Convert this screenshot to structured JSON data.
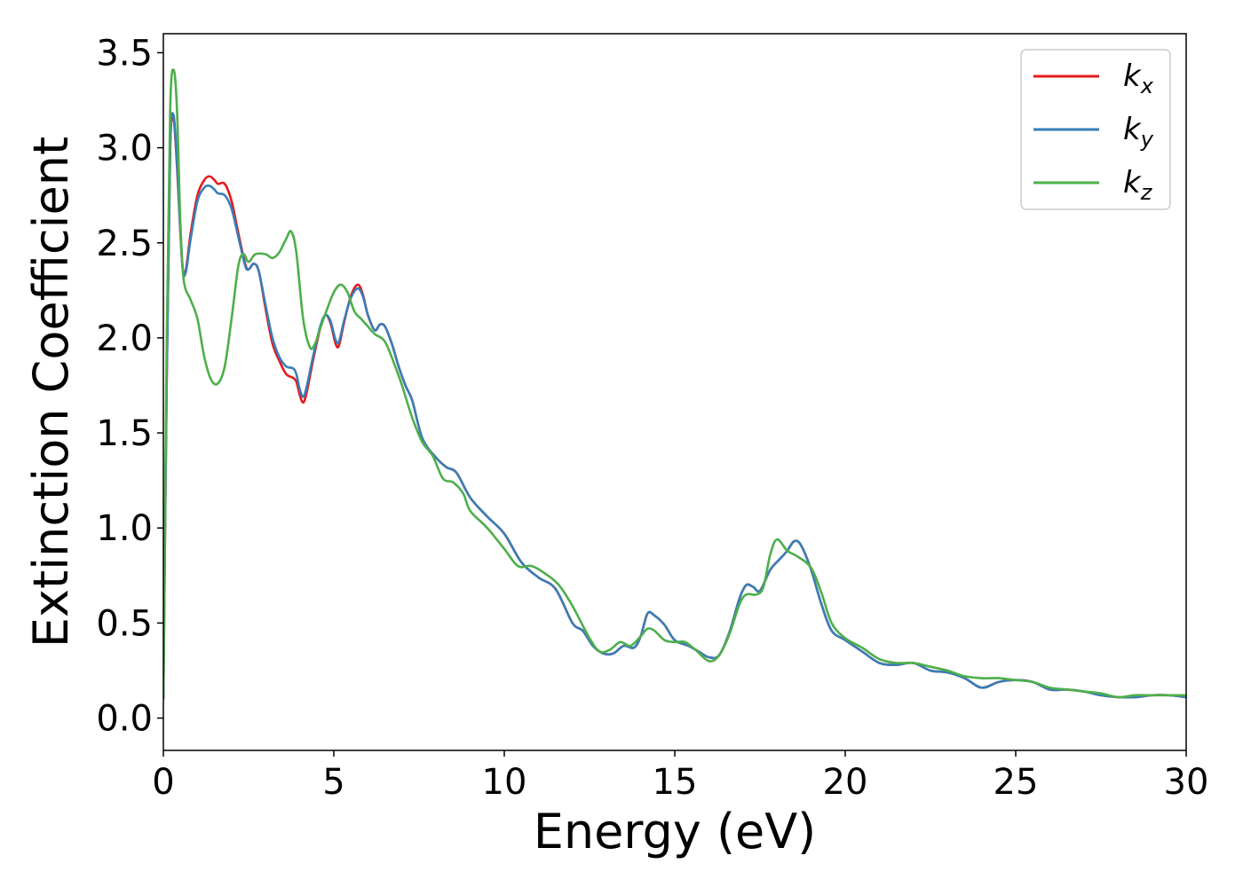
{
  "chart_data": {
    "type": "line",
    "title": "",
    "xlabel": "Energy (eV)",
    "ylabel": "Extinction Coefficient",
    "xlim": [
      0,
      30
    ],
    "ylim": [
      -0.17,
      3.6
    ],
    "xticks": [
      0,
      5,
      10,
      15,
      20,
      25,
      30
    ],
    "xtick_labels": [
      "0",
      "5",
      "10",
      "15",
      "20",
      "25",
      "30"
    ],
    "yticks": [
      0.0,
      0.5,
      1.0,
      1.5,
      2.0,
      2.5,
      3.0,
      3.5
    ],
    "ytick_labels": [
      "0.0",
      "0.5",
      "1.0",
      "1.5",
      "2.0",
      "2.5",
      "3.0",
      "3.5"
    ],
    "grid": false,
    "legend_position": "top-right",
    "series": [
      {
        "name": "k",
        "subscript": "x",
        "color": "#e41a1c",
        "points": [
          [
            0,
            0.1
          ],
          [
            0.1,
            1.8
          ],
          [
            0.2,
            3.0
          ],
          [
            0.3,
            3.15
          ],
          [
            0.4,
            2.9
          ],
          [
            0.55,
            2.4
          ],
          [
            0.65,
            2.35
          ],
          [
            0.8,
            2.55
          ],
          [
            1.0,
            2.75
          ],
          [
            1.2,
            2.83
          ],
          [
            1.35,
            2.85
          ],
          [
            1.5,
            2.83
          ],
          [
            1.6,
            2.81
          ],
          [
            1.8,
            2.81
          ],
          [
            2.0,
            2.72
          ],
          [
            2.2,
            2.55
          ],
          [
            2.4,
            2.39
          ],
          [
            2.5,
            2.36
          ],
          [
            2.65,
            2.39
          ],
          [
            2.8,
            2.35
          ],
          [
            3.0,
            2.15
          ],
          [
            3.2,
            1.97
          ],
          [
            3.4,
            1.88
          ],
          [
            3.6,
            1.81
          ],
          [
            3.8,
            1.79
          ],
          [
            3.9,
            1.77
          ],
          [
            4.0,
            1.7
          ],
          [
            4.1,
            1.66
          ],
          [
            4.2,
            1.71
          ],
          [
            4.4,
            1.89
          ],
          [
            4.6,
            2.05
          ],
          [
            4.75,
            2.12
          ],
          [
            4.9,
            2.08
          ],
          [
            5.05,
            1.97
          ],
          [
            5.15,
            1.96
          ],
          [
            5.3,
            2.08
          ],
          [
            5.5,
            2.22
          ],
          [
            5.7,
            2.28
          ],
          [
            5.85,
            2.23
          ],
          [
            6.0,
            2.12
          ],
          [
            6.2,
            2.04
          ],
          [
            6.35,
            2.07
          ],
          [
            6.5,
            2.06
          ],
          [
            6.7,
            1.97
          ],
          [
            6.9,
            1.85
          ],
          [
            7.1,
            1.75
          ],
          [
            7.3,
            1.67
          ],
          [
            7.6,
            1.47
          ],
          [
            8.0,
            1.37
          ],
          [
            8.3,
            1.32
          ],
          [
            8.6,
            1.29
          ],
          [
            9.0,
            1.16
          ],
          [
            9.5,
            1.06
          ],
          [
            10.0,
            0.97
          ],
          [
            10.5,
            0.82
          ],
          [
            11.0,
            0.74
          ],
          [
            11.5,
            0.68
          ],
          [
            12.0,
            0.5
          ],
          [
            12.3,
            0.46
          ],
          [
            12.6,
            0.38
          ],
          [
            12.9,
            0.34
          ],
          [
            13.2,
            0.34
          ],
          [
            13.5,
            0.38
          ],
          [
            13.8,
            0.37
          ],
          [
            14.0,
            0.43
          ],
          [
            14.2,
            0.55
          ],
          [
            14.4,
            0.54
          ],
          [
            14.7,
            0.49
          ],
          [
            15.0,
            0.41
          ],
          [
            15.4,
            0.38
          ],
          [
            15.7,
            0.35
          ],
          [
            16.0,
            0.32
          ],
          [
            16.3,
            0.33
          ],
          [
            16.6,
            0.45
          ],
          [
            16.9,
            0.63
          ],
          [
            17.1,
            0.7
          ],
          [
            17.3,
            0.69
          ],
          [
            17.5,
            0.67
          ],
          [
            17.8,
            0.78
          ],
          [
            18.1,
            0.84
          ],
          [
            18.3,
            0.88
          ],
          [
            18.5,
            0.93
          ],
          [
            18.7,
            0.91
          ],
          [
            19.0,
            0.78
          ],
          [
            19.3,
            0.6
          ],
          [
            19.6,
            0.46
          ],
          [
            20.0,
            0.41
          ],
          [
            20.5,
            0.35
          ],
          [
            21.0,
            0.29
          ],
          [
            21.5,
            0.28
          ],
          [
            22.0,
            0.29
          ],
          [
            22.5,
            0.25
          ],
          [
            23.0,
            0.24
          ],
          [
            23.5,
            0.21
          ],
          [
            24.0,
            0.16
          ],
          [
            24.5,
            0.19
          ],
          [
            25.0,
            0.2
          ],
          [
            25.5,
            0.19
          ],
          [
            26.0,
            0.15
          ],
          [
            26.5,
            0.15
          ],
          [
            27.0,
            0.14
          ],
          [
            27.5,
            0.12
          ],
          [
            28.0,
            0.11
          ],
          [
            28.5,
            0.11
          ],
          [
            29.0,
            0.12
          ],
          [
            29.5,
            0.12
          ],
          [
            30.0,
            0.11
          ]
        ]
      },
      {
        "name": "k",
        "subscript": "y",
        "color": "#377eb8",
        "points": [
          [
            0,
            0.1
          ],
          [
            0.1,
            1.8
          ],
          [
            0.2,
            3.0
          ],
          [
            0.3,
            3.17
          ],
          [
            0.4,
            2.92
          ],
          [
            0.55,
            2.4
          ],
          [
            0.65,
            2.34
          ],
          [
            0.8,
            2.52
          ],
          [
            1.0,
            2.72
          ],
          [
            1.2,
            2.79
          ],
          [
            1.35,
            2.8
          ],
          [
            1.5,
            2.78
          ],
          [
            1.6,
            2.76
          ],
          [
            1.8,
            2.75
          ],
          [
            2.0,
            2.68
          ],
          [
            2.2,
            2.53
          ],
          [
            2.4,
            2.38
          ],
          [
            2.5,
            2.36
          ],
          [
            2.65,
            2.39
          ],
          [
            2.8,
            2.35
          ],
          [
            3.0,
            2.17
          ],
          [
            3.2,
            2.0
          ],
          [
            3.4,
            1.9
          ],
          [
            3.6,
            1.85
          ],
          [
            3.8,
            1.84
          ],
          [
            3.9,
            1.81
          ],
          [
            4.0,
            1.73
          ],
          [
            4.1,
            1.69
          ],
          [
            4.2,
            1.74
          ],
          [
            4.4,
            1.91
          ],
          [
            4.6,
            2.06
          ],
          [
            4.75,
            2.12
          ],
          [
            4.9,
            2.09
          ],
          [
            5.05,
            1.99
          ],
          [
            5.15,
            1.98
          ],
          [
            5.3,
            2.09
          ],
          [
            5.5,
            2.21
          ],
          [
            5.7,
            2.26
          ],
          [
            5.85,
            2.22
          ],
          [
            6.0,
            2.12
          ],
          [
            6.2,
            2.04
          ],
          [
            6.35,
            2.07
          ],
          [
            6.5,
            2.06
          ],
          [
            6.7,
            1.97
          ],
          [
            6.9,
            1.85
          ],
          [
            7.1,
            1.75
          ],
          [
            7.3,
            1.67
          ],
          [
            7.6,
            1.47
          ],
          [
            8.0,
            1.37
          ],
          [
            8.3,
            1.32
          ],
          [
            8.6,
            1.29
          ],
          [
            9.0,
            1.16
          ],
          [
            9.5,
            1.06
          ],
          [
            10.0,
            0.97
          ],
          [
            10.5,
            0.82
          ],
          [
            11.0,
            0.74
          ],
          [
            11.5,
            0.68
          ],
          [
            12.0,
            0.5
          ],
          [
            12.3,
            0.46
          ],
          [
            12.6,
            0.38
          ],
          [
            12.9,
            0.34
          ],
          [
            13.2,
            0.34
          ],
          [
            13.5,
            0.38
          ],
          [
            13.8,
            0.37
          ],
          [
            14.0,
            0.43
          ],
          [
            14.2,
            0.55
          ],
          [
            14.4,
            0.54
          ],
          [
            14.7,
            0.49
          ],
          [
            15.0,
            0.41
          ],
          [
            15.4,
            0.38
          ],
          [
            15.7,
            0.35
          ],
          [
            16.0,
            0.32
          ],
          [
            16.3,
            0.33
          ],
          [
            16.6,
            0.45
          ],
          [
            16.9,
            0.63
          ],
          [
            17.1,
            0.7
          ],
          [
            17.3,
            0.69
          ],
          [
            17.5,
            0.67
          ],
          [
            17.8,
            0.78
          ],
          [
            18.1,
            0.84
          ],
          [
            18.3,
            0.88
          ],
          [
            18.5,
            0.93
          ],
          [
            18.7,
            0.91
          ],
          [
            19.0,
            0.78
          ],
          [
            19.3,
            0.6
          ],
          [
            19.6,
            0.46
          ],
          [
            20.0,
            0.41
          ],
          [
            20.5,
            0.35
          ],
          [
            21.0,
            0.29
          ],
          [
            21.5,
            0.28
          ],
          [
            22.0,
            0.29
          ],
          [
            22.5,
            0.25
          ],
          [
            23.0,
            0.24
          ],
          [
            23.5,
            0.21
          ],
          [
            24.0,
            0.16
          ],
          [
            24.5,
            0.19
          ],
          [
            25.0,
            0.2
          ],
          [
            25.5,
            0.19
          ],
          [
            26.0,
            0.15
          ],
          [
            26.5,
            0.15
          ],
          [
            27.0,
            0.14
          ],
          [
            27.5,
            0.12
          ],
          [
            28.0,
            0.11
          ],
          [
            28.5,
            0.11
          ],
          [
            29.0,
            0.12
          ],
          [
            29.5,
            0.12
          ],
          [
            30.0,
            0.11
          ]
        ]
      },
      {
        "name": "k",
        "subscript": "z",
        "color": "#4daf4a",
        "points": [
          [
            0,
            0.1
          ],
          [
            0.1,
            2.0
          ],
          [
            0.2,
            3.2
          ],
          [
            0.3,
            3.41
          ],
          [
            0.4,
            3.2
          ],
          [
            0.5,
            2.6
          ],
          [
            0.6,
            2.3
          ],
          [
            0.8,
            2.2
          ],
          [
            1.0,
            2.1
          ],
          [
            1.2,
            1.9
          ],
          [
            1.4,
            1.78
          ],
          [
            1.6,
            1.76
          ],
          [
            1.8,
            1.85
          ],
          [
            2.0,
            2.1
          ],
          [
            2.2,
            2.38
          ],
          [
            2.35,
            2.44
          ],
          [
            2.5,
            2.4
          ],
          [
            2.7,
            2.44
          ],
          [
            3.0,
            2.44
          ],
          [
            3.2,
            2.42
          ],
          [
            3.4,
            2.45
          ],
          [
            3.6,
            2.52
          ],
          [
            3.75,
            2.56
          ],
          [
            3.9,
            2.45
          ],
          [
            4.1,
            2.1
          ],
          [
            4.3,
            1.95
          ],
          [
            4.45,
            1.97
          ],
          [
            4.6,
            2.05
          ],
          [
            4.8,
            2.15
          ],
          [
            5.0,
            2.24
          ],
          [
            5.2,
            2.28
          ],
          [
            5.4,
            2.24
          ],
          [
            5.6,
            2.14
          ],
          [
            5.8,
            2.1
          ],
          [
            6.0,
            2.06
          ],
          [
            6.2,
            2.02
          ],
          [
            6.5,
            1.98
          ],
          [
            6.8,
            1.85
          ],
          [
            7.0,
            1.75
          ],
          [
            7.3,
            1.58
          ],
          [
            7.6,
            1.45
          ],
          [
            7.9,
            1.38
          ],
          [
            8.2,
            1.26
          ],
          [
            8.5,
            1.24
          ],
          [
            8.8,
            1.18
          ],
          [
            9.0,
            1.09
          ],
          [
            9.5,
            1.0
          ],
          [
            10.0,
            0.89
          ],
          [
            10.4,
            0.8
          ],
          [
            10.8,
            0.8
          ],
          [
            11.2,
            0.76
          ],
          [
            11.6,
            0.7
          ],
          [
            12.0,
            0.59
          ],
          [
            12.5,
            0.42
          ],
          [
            12.8,
            0.35
          ],
          [
            13.1,
            0.36
          ],
          [
            13.4,
            0.4
          ],
          [
            13.7,
            0.38
          ],
          [
            14.0,
            0.43
          ],
          [
            14.2,
            0.47
          ],
          [
            14.4,
            0.46
          ],
          [
            14.7,
            0.41
          ],
          [
            15.0,
            0.4
          ],
          [
            15.3,
            0.4
          ],
          [
            15.6,
            0.36
          ],
          [
            16.0,
            0.3
          ],
          [
            16.3,
            0.33
          ],
          [
            16.6,
            0.44
          ],
          [
            16.9,
            0.6
          ],
          [
            17.1,
            0.65
          ],
          [
            17.4,
            0.65
          ],
          [
            17.6,
            0.69
          ],
          [
            17.8,
            0.86
          ],
          [
            18.0,
            0.94
          ],
          [
            18.3,
            0.88
          ],
          [
            18.6,
            0.85
          ],
          [
            19.0,
            0.79
          ],
          [
            19.3,
            0.66
          ],
          [
            19.6,
            0.5
          ],
          [
            20.0,
            0.42
          ],
          [
            20.5,
            0.37
          ],
          [
            21.0,
            0.31
          ],
          [
            21.5,
            0.29
          ],
          [
            22.0,
            0.29
          ],
          [
            22.5,
            0.27
          ],
          [
            23.0,
            0.25
          ],
          [
            23.5,
            0.22
          ],
          [
            24.0,
            0.21
          ],
          [
            24.5,
            0.21
          ],
          [
            25.0,
            0.2
          ],
          [
            25.5,
            0.19
          ],
          [
            26.0,
            0.16
          ],
          [
            26.5,
            0.15
          ],
          [
            27.0,
            0.14
          ],
          [
            27.5,
            0.13
          ],
          [
            28.0,
            0.11
          ],
          [
            28.5,
            0.12
          ],
          [
            29.0,
            0.12
          ],
          [
            29.5,
            0.12
          ],
          [
            30.0,
            0.12
          ]
        ]
      }
    ]
  }
}
